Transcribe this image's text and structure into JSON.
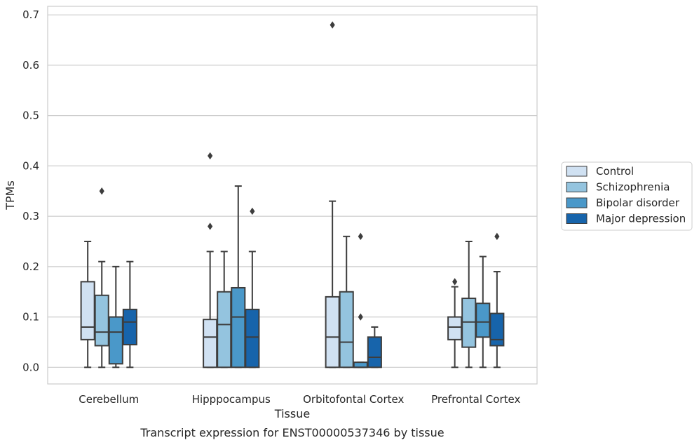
{
  "chart_data": {
    "type": "box",
    "xlabel": "Tissue",
    "ylabel": "TPMs",
    "caption": "Transcript expression for ENST00000537346 by tissue",
    "ylim": [
      -0.033,
      0.717
    ],
    "yticks": [
      0.0,
      0.1,
      0.2,
      0.3,
      0.4,
      0.5,
      0.6,
      0.7
    ],
    "ytick_labels": [
      "0.0",
      "0.1",
      "0.2",
      "0.3",
      "0.4",
      "0.5",
      "0.6",
      "0.7"
    ],
    "grid": "horizontal",
    "legend_position": "right",
    "categories": [
      "Cerebellum",
      "Hipppocampus",
      "Orbitofontal Cortex",
      "Prefrontal Cortex"
    ],
    "series": [
      {
        "name": "Control",
        "color": "#d0e1f2",
        "boxes": [
          {
            "whislo": 0.0,
            "q1": 0.055,
            "med": 0.08,
            "q3": 0.17,
            "whishi": 0.25,
            "fliers": []
          },
          {
            "whislo": 0.0,
            "q1": 0.0,
            "med": 0.06,
            "q3": 0.095,
            "whishi": 0.23,
            "fliers": [
              0.28,
              0.42
            ]
          },
          {
            "whislo": 0.0,
            "q1": 0.0,
            "med": 0.06,
            "q3": 0.14,
            "whishi": 0.33,
            "fliers": [
              0.68
            ]
          },
          {
            "whislo": 0.0,
            "q1": 0.055,
            "med": 0.08,
            "q3": 0.1,
            "whishi": 0.16,
            "fliers": [
              0.17
            ]
          }
        ]
      },
      {
        "name": "Schizophrenia",
        "color": "#94c4df",
        "boxes": [
          {
            "whislo": 0.0,
            "q1": 0.043,
            "med": 0.07,
            "q3": 0.143,
            "whishi": 0.21,
            "fliers": [
              0.35
            ]
          },
          {
            "whislo": 0.0,
            "q1": 0.0,
            "med": 0.085,
            "q3": 0.15,
            "whishi": 0.23,
            "fliers": []
          },
          {
            "whislo": 0.0,
            "q1": 0.0,
            "med": 0.05,
            "q3": 0.15,
            "whishi": 0.26,
            "fliers": []
          },
          {
            "whislo": 0.0,
            "q1": 0.04,
            "med": 0.09,
            "q3": 0.137,
            "whishi": 0.25,
            "fliers": []
          }
        ]
      },
      {
        "name": "Bipolar disorder",
        "color": "#4a98c9",
        "boxes": [
          {
            "whislo": 0.0,
            "q1": 0.007,
            "med": 0.07,
            "q3": 0.1,
            "whishi": 0.2,
            "fliers": []
          },
          {
            "whislo": 0.0,
            "q1": 0.0,
            "med": 0.1,
            "q3": 0.158,
            "whishi": 0.36,
            "fliers": []
          },
          {
            "whislo": 0.0,
            "q1": 0.0,
            "med": 0.0,
            "q3": 0.01,
            "whishi": 0.01,
            "fliers": [
              0.1,
              0.26
            ]
          },
          {
            "whislo": 0.0,
            "q1": 0.06,
            "med": 0.09,
            "q3": 0.127,
            "whishi": 0.22,
            "fliers": []
          }
        ]
      },
      {
        "name": "Major depression",
        "color": "#1764ab",
        "boxes": [
          {
            "whislo": 0.0,
            "q1": 0.045,
            "med": 0.09,
            "q3": 0.115,
            "whishi": 0.21,
            "fliers": []
          },
          {
            "whislo": 0.0,
            "q1": 0.0,
            "med": 0.06,
            "q3": 0.115,
            "whishi": 0.23,
            "fliers": [
              0.31
            ]
          },
          {
            "whislo": 0.0,
            "q1": 0.0,
            "med": 0.02,
            "q3": 0.06,
            "whishi": 0.08,
            "fliers": []
          },
          {
            "whislo": 0.0,
            "q1": 0.043,
            "med": 0.055,
            "q3": 0.107,
            "whishi": 0.19,
            "fliers": [
              0.26
            ]
          }
        ]
      }
    ]
  }
}
